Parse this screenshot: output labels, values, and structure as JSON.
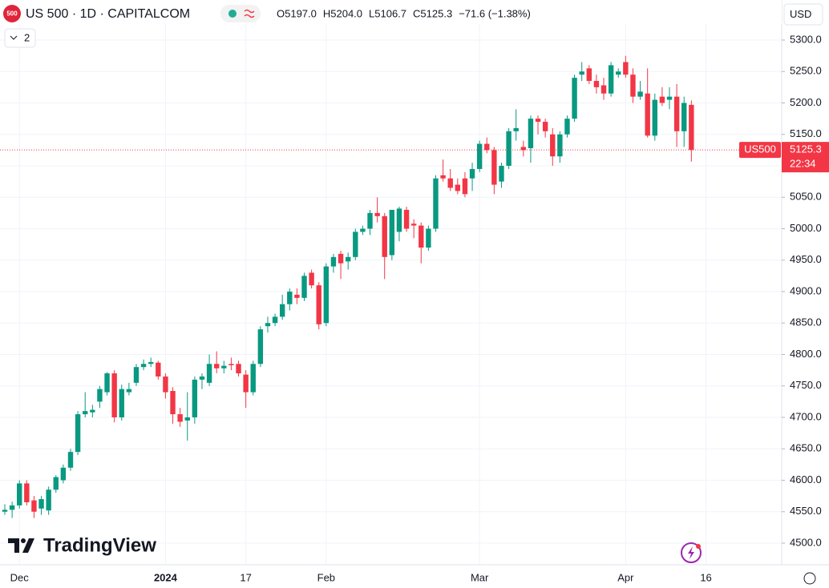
{
  "chart_data": {
    "type": "candlestick",
    "badge": "500",
    "title": "US 500 · 1D · CAPITALCOM",
    "ohlc_legend": [
      "O5197.0",
      "H5204.0",
      "L5106.7",
      "C5125.3",
      "−71.6 (−1.38%)"
    ],
    "indicator_count": "2",
    "currency": "USD",
    "symbol_tag": "US500",
    "price_label": "5125.3",
    "countdown": "22:34",
    "brand": "TradingView",
    "up_color": "#089981",
    "down_color": "#f23645",
    "grid": true,
    "ylim": [
      4500,
      5300
    ],
    "yticks": [
      {
        "value": 4500,
        "label": "4500.0"
      },
      {
        "value": 4550,
        "label": "4550.0"
      },
      {
        "value": 4600,
        "label": "4600.0"
      },
      {
        "value": 4650,
        "label": "4650.0"
      },
      {
        "value": 4700,
        "label": "4700.0"
      },
      {
        "value": 4750,
        "label": "4750.0"
      },
      {
        "value": 4800,
        "label": "4800.0"
      },
      {
        "value": 4850,
        "label": "4850.0"
      },
      {
        "value": 4900,
        "label": "4900.0"
      },
      {
        "value": 4950,
        "label": "4950.0"
      },
      {
        "value": 5000,
        "label": "5000.0"
      },
      {
        "value": 5050,
        "label": "5050.0"
      },
      {
        "value": 5100,
        "label": "5100.0"
      },
      {
        "value": 5150,
        "label": "5150.0"
      },
      {
        "value": 5200,
        "label": "5200.0"
      },
      {
        "value": 5250,
        "label": "5250.0"
      },
      {
        "value": 5300,
        "label": "5300.0"
      }
    ],
    "categories": [
      null,
      null,
      "Dec",
      null,
      null,
      null,
      null,
      null,
      null,
      null,
      null,
      null,
      null,
      null,
      null,
      null,
      null,
      null,
      null,
      null,
      null,
      null,
      "2024",
      null,
      null,
      null,
      null,
      null,
      null,
      null,
      null,
      null,
      null,
      "17",
      null,
      null,
      null,
      null,
      null,
      null,
      null,
      null,
      null,
      null,
      "Feb",
      null,
      null,
      null,
      null,
      null,
      null,
      null,
      null,
      null,
      null,
      null,
      null,
      null,
      null,
      null,
      null,
      null,
      null,
      null,
      null,
      "Mar",
      null,
      null,
      null,
      null,
      null,
      null,
      null,
      null,
      null,
      null,
      null,
      null,
      null,
      null,
      null,
      null,
      null,
      null,
      null,
      "Apr",
      null,
      null,
      null,
      null,
      null,
      null,
      null,
      null,
      null,
      null,
      "16"
    ],
    "open": [
      4550,
      4553,
      4560,
      4595,
      4568,
      4555,
      4552,
      4585,
      4600,
      4620,
      4645,
      4705,
      4708,
      4725,
      4740,
      4770,
      4700,
      4740,
      4755,
      4780,
      4785,
      4787,
      4765,
      4742,
      4705,
      4695,
      4700,
      4760,
      4755,
      4785,
      4778,
      4785,
      4785,
      4768,
      4740,
      4785,
      4845,
      4850,
      4860,
      4880,
      4895,
      4890,
      4930,
      4910,
      4850,
      4940,
      4960,
      4948,
      4955,
      4995,
      5000,
      5025,
      5020,
      4958,
      4995,
      5030,
      5008,
      5005,
      4970,
      5000,
      5085,
      5080,
      5070,
      5080,
      5080,
      5095,
      5135,
      5125,
      5075,
      5100,
      5155,
      5130,
      5128,
      5175,
      5170,
      5150,
      5115,
      5150,
      5175,
      5245,
      5255,
      5235,
      5228,
      5215,
      5245,
      5265,
      5245,
      5210,
      5215,
      5148,
      5210,
      5205,
      5210,
      5155,
      5197,
      null,
      null
    ],
    "high": [
      4562,
      4566,
      4600,
      4600,
      4575,
      4575,
      4590,
      4608,
      4625,
      4650,
      4710,
      4740,
      4720,
      4750,
      4772,
      4775,
      4752,
      4755,
      4785,
      4792,
      4795,
      4790,
      4770,
      4748,
      4715,
      4740,
      4765,
      4770,
      4800,
      4805,
      4790,
      4795,
      4790,
      4775,
      4790,
      4845,
      4860,
      4865,
      4895,
      4905,
      4905,
      4930,
      4935,
      4915,
      4945,
      4960,
      4965,
      4962,
      5000,
      5005,
      5030,
      5050,
      5025,
      5030,
      5035,
      5035,
      5015,
      5010,
      5005,
      5085,
      5110,
      5095,
      5080,
      5090,
      5105,
      5140,
      5145,
      5130,
      5105,
      5160,
      5190,
      5140,
      5180,
      5180,
      5175,
      5160,
      5155,
      5180,
      5245,
      5265,
      5260,
      5245,
      5240,
      5265,
      5255,
      5275,
      5255,
      5235,
      5255,
      5215,
      5225,
      5225,
      5230,
      5210,
      5204,
      null,
      null
    ],
    "low": [
      4545,
      4540,
      4555,
      4560,
      4540,
      4545,
      4545,
      4580,
      4595,
      4615,
      4640,
      4700,
      4700,
      4715,
      4735,
      4692,
      4695,
      4735,
      4750,
      4775,
      4780,
      4760,
      4730,
      4690,
      4685,
      4663,
      4690,
      4745,
      4750,
      4770,
      4770,
      4775,
      4765,
      4715,
      4735,
      4780,
      4835,
      4845,
      4855,
      4870,
      4880,
      4885,
      4905,
      4840,
      4845,
      4930,
      4920,
      4935,
      4950,
      4990,
      4990,
      5010,
      4920,
      4950,
      4980,
      4995,
      4985,
      4945,
      4965,
      4995,
      5075,
      5060,
      5055,
      5050,
      5060,
      5090,
      5120,
      5055,
      5065,
      5095,
      5140,
      5115,
      5105,
      5150,
      5145,
      5100,
      5105,
      5145,
      5170,
      5235,
      5230,
      5215,
      5205,
      5210,
      5240,
      5240,
      5200,
      5205,
      5145,
      5140,
      5195,
      5190,
      5130,
      5130,
      5106.7,
      null,
      null
    ],
    "close": [
      4553,
      4560,
      4595,
      4565,
      4550,
      4570,
      4585,
      4605,
      4620,
      4645,
      4705,
      4710,
      4712,
      4745,
      4770,
      4700,
      4745,
      4745,
      4780,
      4785,
      4788,
      4765,
      4740,
      4705,
      4693,
      4700,
      4760,
      4765,
      4785,
      4778,
      4782,
      4783,
      4770,
      4740,
      4785,
      4840,
      4850,
      4860,
      4880,
      4900,
      4890,
      4925,
      4910,
      4848,
      4940,
      4955,
      4945,
      4955,
      4995,
      5000,
      5025,
      5020,
      4955,
      5030,
      5032,
      5000,
      5005,
      4970,
      5000,
      5080,
      5080,
      5065,
      5060,
      5055,
      5095,
      5135,
      5125,
      5070,
      5100,
      5155,
      5160,
      5125,
      5175,
      5170,
      5155,
      5115,
      5150,
      5175,
      5240,
      5250,
      5235,
      5225,
      5215,
      5260,
      5250,
      5245,
      5210,
      5218,
      5148,
      5205,
      5200,
      5210,
      5155,
      5200,
      5125.3,
      null,
      null
    ]
  }
}
